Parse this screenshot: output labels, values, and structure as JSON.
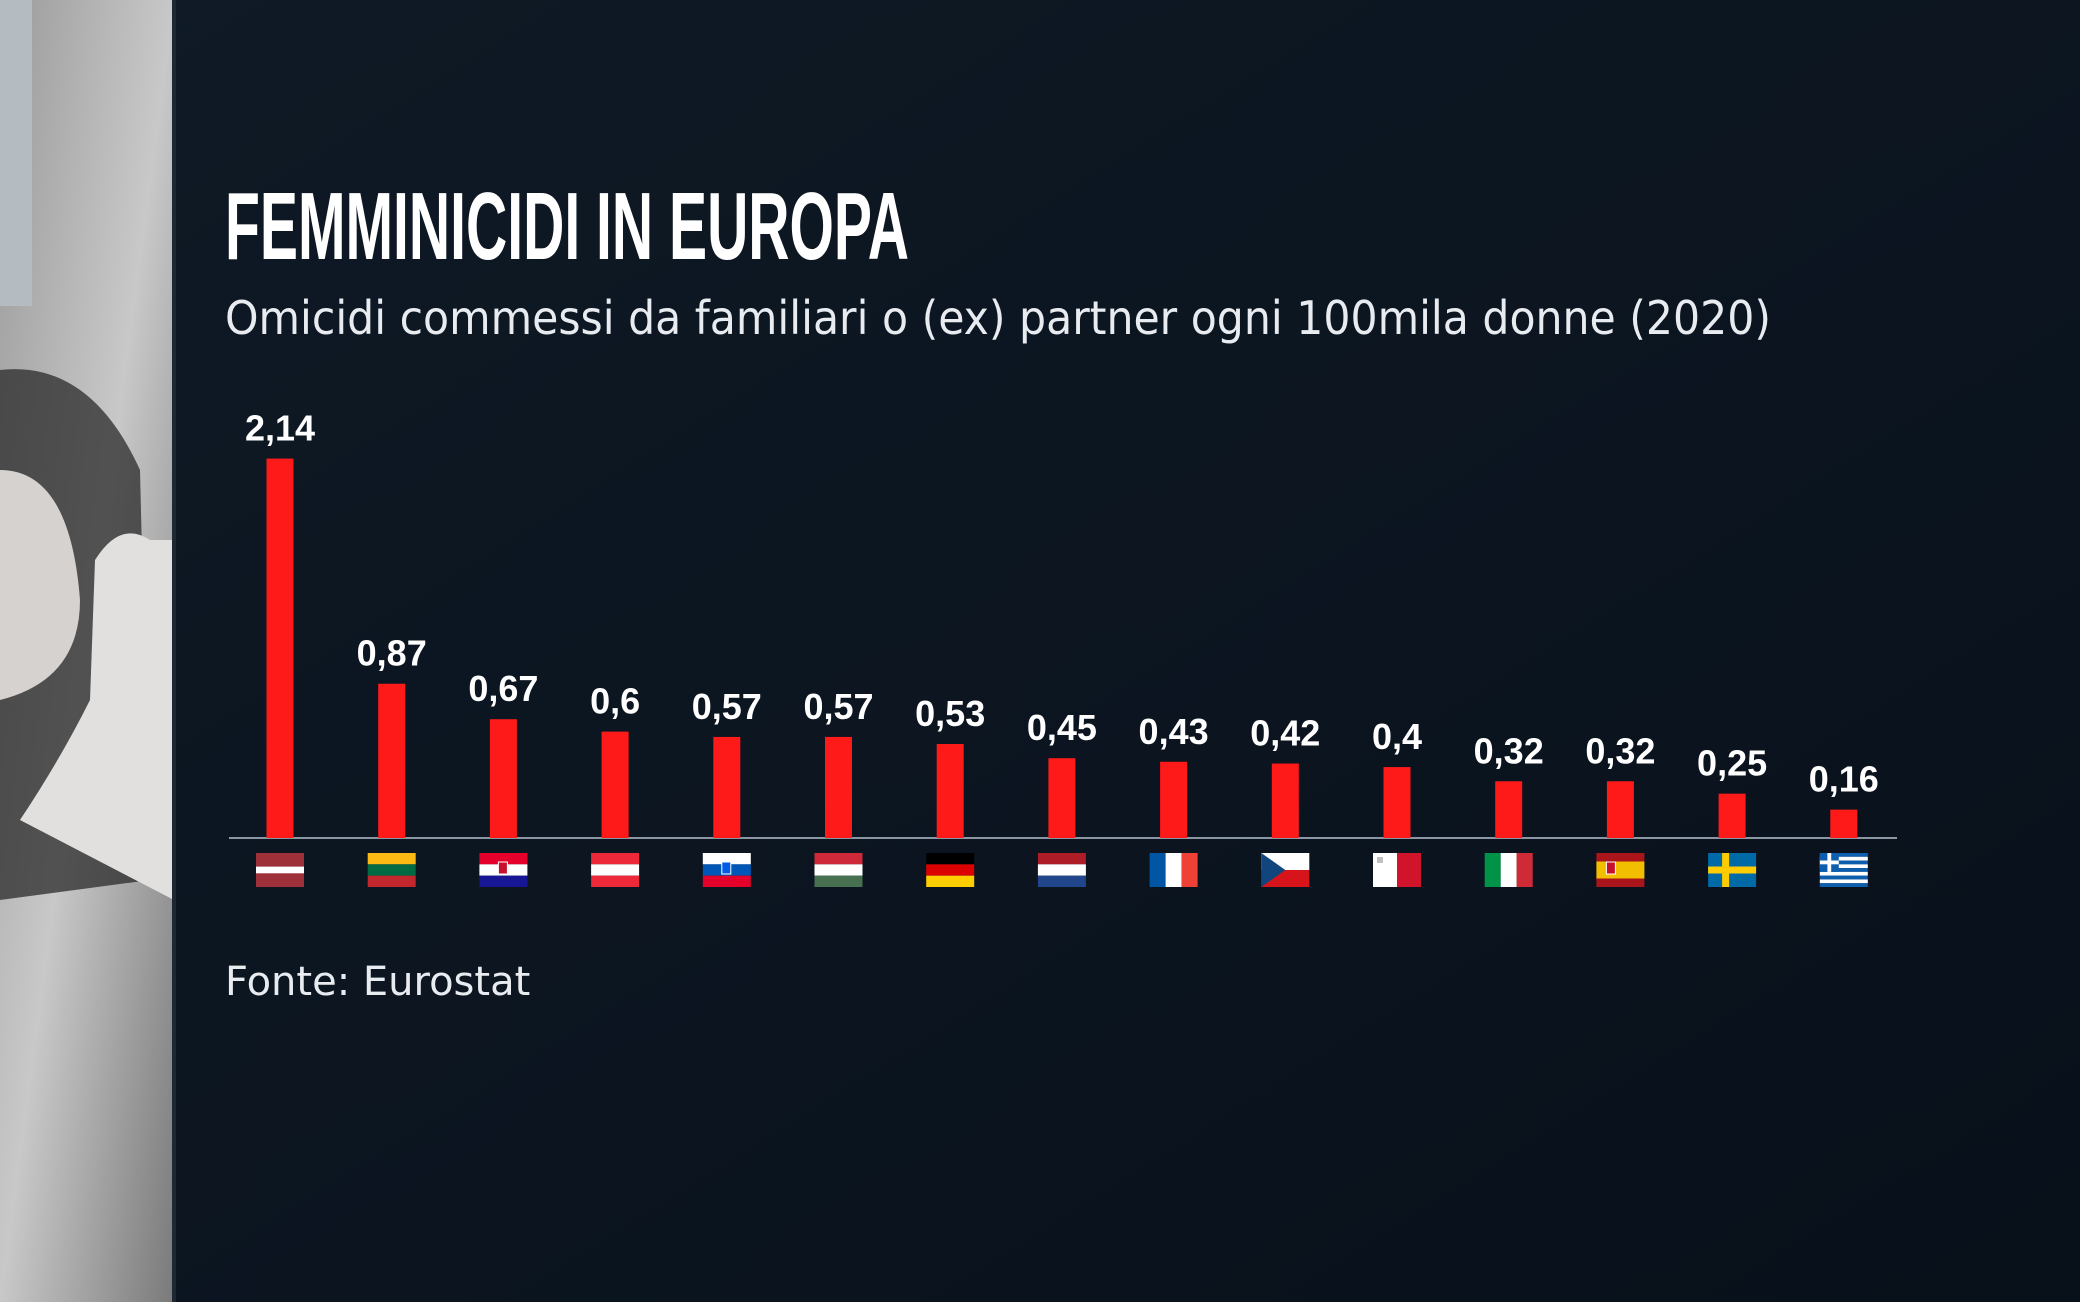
{
  "chart_data": {
    "type": "bar",
    "title": "FEMMINICIDI IN EUROPA",
    "subtitle": "Omicidi commessi da familiari o (ex) partner ogni 100mila donne (2020)",
    "source": "Fonte: Eurostat",
    "categories": [
      null,
      null,
      null,
      null,
      null,
      null,
      null,
      null,
      null,
      null,
      null,
      null,
      null,
      null,
      null
    ],
    "values": [
      2.14,
      0.87,
      0.67,
      0.6,
      0.57,
      0.57,
      0.53,
      0.45,
      0.43,
      0.42,
      0.4,
      0.32,
      0.32,
      0.25,
      0.16
    ],
    "value_labels": [
      "2,14",
      "0,87",
      "0,67",
      "0,6",
      "0,57",
      "0,57",
      "0,53",
      "0,45",
      "0,43",
      "0,42",
      "0,4",
      "0,32",
      "0,32",
      "0,25",
      "0,16"
    ],
    "color": "#ff1a1a"
  }
}
